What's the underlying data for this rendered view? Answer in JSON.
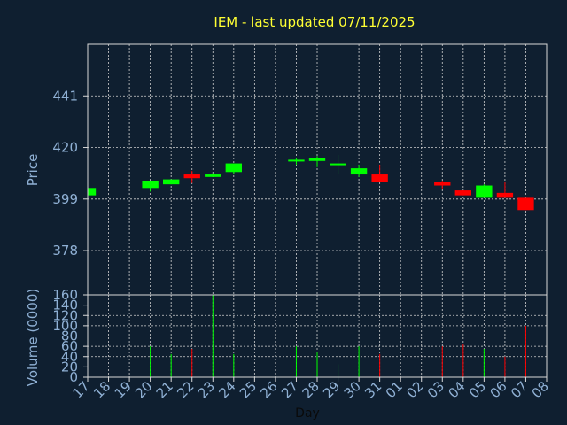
{
  "chart_data": {
    "type": "candlestick",
    "title": "IEM - last updated 07/11/2025",
    "xlabel": "Day",
    "price_panel": {
      "ylabel": "Price",
      "ylim": [
        360,
        462
      ],
      "yticks": [
        378,
        399,
        420,
        441
      ],
      "grid": true
    },
    "volume_panel": {
      "ylabel": "Volume (0000)",
      "ylim": [
        0,
        160
      ],
      "yticks": [
        0,
        20,
        40,
        60,
        80,
        100,
        120,
        140,
        160
      ],
      "grid": true
    },
    "x_ticks": [
      "17",
      "18",
      "19",
      "20",
      "21",
      "22",
      "23",
      "24",
      "25",
      "26",
      "27",
      "28",
      "29",
      "30",
      "31",
      "01",
      "02",
      "03",
      "04",
      "05",
      "06",
      "07",
      "08"
    ],
    "candles": [
      {
        "day": "17",
        "open": 400.5,
        "close": 403.5,
        "high": 403.5,
        "low": 400.5,
        "volume": 0
      },
      {
        "day": "20",
        "open": 403.5,
        "close": 406.5,
        "high": 406.5,
        "low": 402.0,
        "volume": 60
      },
      {
        "day": "21",
        "open": 405.0,
        "close": 407.0,
        "high": 407.0,
        "low": 405.0,
        "volume": 45
      },
      {
        "day": "22",
        "open": 409.0,
        "close": 407.5,
        "high": 410.5,
        "low": 405.5,
        "volume": 55
      },
      {
        "day": "23",
        "open": 408.0,
        "close": 409.0,
        "high": 409.5,
        "low": 408.0,
        "volume": 160
      },
      {
        "day": "24",
        "open": 410.0,
        "close": 413.5,
        "high": 413.5,
        "low": 409.0,
        "volume": 45
      },
      {
        "day": "27",
        "open": 414.5,
        "close": 415.0,
        "high": 415.5,
        "low": 413.0,
        "volume": 60
      },
      {
        "day": "28",
        "open": 414.5,
        "close": 415.5,
        "high": 416.5,
        "low": 412.0,
        "volume": 48
      },
      {
        "day": "29",
        "open": 413.5,
        "close": 413.5,
        "high": 417.0,
        "low": 409.0,
        "volume": 25
      },
      {
        "day": "30",
        "open": 409.0,
        "close": 411.5,
        "high": 413.0,
        "low": 408.0,
        "volume": 60
      },
      {
        "day": "31",
        "open": 409.0,
        "close": 406.0,
        "high": 413.0,
        "low": 406.0,
        "volume": 45
      },
      {
        "day": "03",
        "open": 406.0,
        "close": 404.5,
        "high": 406.5,
        "low": 403.0,
        "volume": 60
      },
      {
        "day": "04",
        "open": 402.5,
        "close": 400.5,
        "high": 402.5,
        "low": 400.5,
        "volume": 65
      },
      {
        "day": "05",
        "open": 399.5,
        "close": 404.5,
        "high": 405.0,
        "low": 399.5,
        "volume": 55
      },
      {
        "day": "06",
        "open": 401.5,
        "close": 399.5,
        "high": 406.0,
        "low": 399.5,
        "volume": 40
      },
      {
        "day": "07",
        "open": 399.5,
        "close": 394.5,
        "high": 399.5,
        "low": 394.5,
        "volume": 100
      }
    ],
    "colors": {
      "up": "#00ff00",
      "down": "#ff0000",
      "background": "#0f1f30",
      "title": "#ffff33",
      "axis_text": "#8fb0d4"
    }
  }
}
